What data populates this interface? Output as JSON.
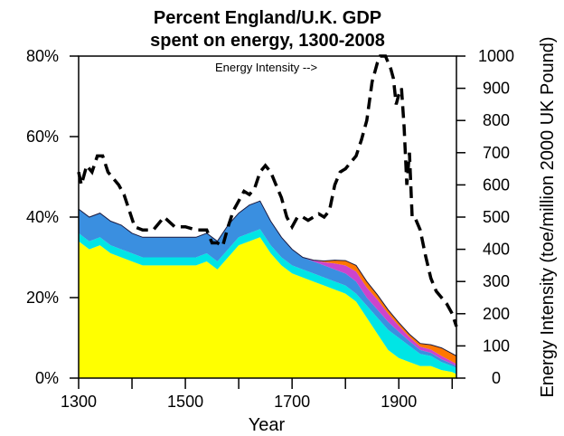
{
  "chart_data": {
    "type": "area",
    "title_line1": "Percent England/U.K. GDP",
    "title_line2": "spent on energy, 1300-2008",
    "xlabel": "Year",
    "ylabel_left": "",
    "ylabel_right": "Energy Intensity (toe/million 2000 UK Pound)",
    "annotation": "Energy Intensity -->",
    "xlim": [
      1300,
      2008
    ],
    "ylim_left": [
      0,
      80
    ],
    "ylim_right": [
      0,
      1000
    ],
    "x_ticks": [
      1300,
      1400,
      1500,
      1600,
      1700,
      1800,
      1900,
      2000
    ],
    "x_tick_labels": [
      "1300",
      "1500",
      "1700",
      "1900"
    ],
    "y_left_tick_labels": [
      "0%",
      "20%",
      "40%",
      "60%",
      "80%"
    ],
    "y_left_ticks": [
      0,
      20,
      40,
      60,
      80
    ],
    "y_right_ticks": [
      0,
      100,
      200,
      300,
      400,
      500,
      600,
      700,
      800,
      900,
      1000
    ],
    "y_right_tick_labels": [
      "0",
      "100",
      "200",
      "300",
      "400",
      "500",
      "600",
      "700",
      "800",
      "900",
      "1000"
    ],
    "series": [
      {
        "name": "Yellow component",
        "color": "#ffff00",
        "axis": "left",
        "x": [
          1300,
          1320,
          1340,
          1360,
          1380,
          1400,
          1420,
          1440,
          1460,
          1480,
          1500,
          1520,
          1540,
          1560,
          1580,
          1600,
          1620,
          1640,
          1660,
          1680,
          1700,
          1720,
          1740,
          1760,
          1780,
          1800,
          1820,
          1840,
          1860,
          1880,
          1900,
          1920,
          1940,
          1960,
          1980,
          2000,
          2008
        ],
        "values": [
          34,
          32,
          33,
          31,
          30,
          29,
          28,
          28,
          28,
          28,
          28,
          28,
          29,
          27,
          30,
          33,
          34,
          35,
          31,
          28,
          26,
          25,
          24,
          23,
          22,
          21,
          19,
          15,
          11,
          7,
          5,
          4,
          3,
          3,
          2,
          1.5,
          1
        ]
      },
      {
        "name": "Cyan component",
        "color": "#00e5e5",
        "axis": "left",
        "x": [
          1300,
          1320,
          1340,
          1360,
          1380,
          1400,
          1420,
          1440,
          1460,
          1480,
          1500,
          1520,
          1540,
          1560,
          1580,
          1600,
          1620,
          1640,
          1660,
          1680,
          1700,
          1720,
          1740,
          1760,
          1780,
          1800,
          1820,
          1840,
          1860,
          1880,
          1900,
          1920,
          1940,
          1960,
          1980,
          2000,
          2008
        ],
        "values": [
          2,
          2,
          2,
          2,
          2,
          2,
          2,
          2,
          2,
          2,
          2,
          2,
          2,
          2,
          2,
          2,
          2,
          2,
          2,
          2,
          2,
          2,
          2,
          2,
          2,
          2,
          2,
          3,
          4,
          5,
          5,
          4,
          3,
          2.5,
          2,
          1.5,
          1.5
        ]
      },
      {
        "name": "Blue component",
        "color": "#3a8fe0",
        "axis": "left",
        "x": [
          1300,
          1320,
          1340,
          1360,
          1380,
          1400,
          1420,
          1440,
          1460,
          1480,
          1500,
          1520,
          1540,
          1560,
          1580,
          1600,
          1620,
          1640,
          1660,
          1680,
          1700,
          1720,
          1740,
          1760,
          1780,
          1800,
          1820,
          1840,
          1860,
          1880,
          1900,
          1920,
          1940,
          1960,
          1980,
          2000,
          2008
        ],
        "values": [
          6,
          6,
          6,
          6,
          6,
          5,
          5,
          5,
          5,
          5,
          5,
          5,
          5,
          5,
          6,
          6,
          7,
          7,
          6,
          5,
          4,
          3,
          3,
          3,
          3,
          3,
          3,
          2,
          2,
          2,
          1.5,
          1.2,
          1,
          0.8,
          0.7,
          0.5,
          0.5
        ]
      },
      {
        "name": "Magenta component",
        "color": "#cc44cc",
        "axis": "left",
        "x": [
          1300,
          1320,
          1340,
          1360,
          1380,
          1400,
          1420,
          1440,
          1460,
          1480,
          1500,
          1520,
          1540,
          1560,
          1580,
          1600,
          1620,
          1640,
          1660,
          1680,
          1700,
          1720,
          1740,
          1760,
          1780,
          1800,
          1820,
          1840,
          1860,
          1880,
          1900,
          1920,
          1940,
          1960,
          1980,
          2000,
          2008
        ],
        "values": [
          0,
          0,
          0,
          0,
          0,
          0,
          0,
          0,
          0,
          0,
          0,
          0,
          0,
          0,
          0,
          0,
          0,
          0,
          0,
          0,
          0,
          0,
          0.3,
          0.8,
          1.5,
          2,
          2.5,
          2.5,
          2.5,
          2,
          1.5,
          1,
          0.8,
          0.8,
          0.8,
          0.6,
          0.5
        ]
      },
      {
        "name": "Orange component",
        "color": "#ff7700",
        "axis": "left",
        "x": [
          1300,
          1320,
          1340,
          1360,
          1380,
          1400,
          1420,
          1440,
          1460,
          1480,
          1500,
          1520,
          1540,
          1560,
          1580,
          1600,
          1620,
          1640,
          1660,
          1680,
          1700,
          1720,
          1740,
          1760,
          1780,
          1800,
          1820,
          1840,
          1860,
          1880,
          1900,
          1920,
          1940,
          1960,
          1980,
          2000,
          2008
        ],
        "values": [
          0,
          0,
          0,
          0,
          0,
          0,
          0,
          0,
          0,
          0,
          0,
          0,
          0,
          0,
          0,
          0,
          0,
          0,
          0,
          0,
          0,
          0,
          0,
          0.3,
          0.8,
          1.2,
          1.5,
          1.5,
          1.2,
          1,
          0.8,
          0.7,
          0.8,
          1.2,
          2,
          2,
          2
        ]
      },
      {
        "name": "Energy Intensity",
        "color": "#000000",
        "axis": "right",
        "style": "dashed",
        "x": [
          1300,
          1305,
          1315,
          1325,
          1335,
          1345,
          1355,
          1365,
          1375,
          1385,
          1395,
          1405,
          1420,
          1440,
          1460,
          1480,
          1500,
          1520,
          1540,
          1550,
          1560,
          1570,
          1580,
          1590,
          1600,
          1610,
          1620,
          1630,
          1640,
          1650,
          1660,
          1670,
          1680,
          1690,
          1700,
          1710,
          1720,
          1730,
          1740,
          1750,
          1760,
          1770,
          1780,
          1790,
          1800,
          1810,
          1820,
          1830,
          1840,
          1850,
          1860,
          1865,
          1870,
          1875,
          1880,
          1885,
          1890,
          1895,
          1900,
          1905,
          1910,
          1915,
          1920,
          1925,
          1930,
          1940,
          1950,
          1960,
          1970,
          1980,
          1990,
          2000,
          2008
        ],
        "values": [
          640,
          600,
          660,
          640,
          690,
          690,
          640,
          620,
          600,
          570,
          520,
          470,
          460,
          460,
          500,
          470,
          470,
          460,
          460,
          420,
          420,
          410,
          470,
          520,
          550,
          580,
          570,
          590,
          640,
          660,
          640,
          600,
          560,
          500,
          470,
          500,
          500,
          490,
          500,
          510,
          500,
          520,
          600,
          640,
          650,
          670,
          690,
          740,
          800,
          920,
          980,
          1000,
          1010,
          1000,
          980,
          960,
          930,
          850,
          880,
          900,
          780,
          600,
          700,
          500,
          500,
          460,
          380,
          310,
          270,
          250,
          230,
          200,
          160
        ]
      }
    ]
  }
}
